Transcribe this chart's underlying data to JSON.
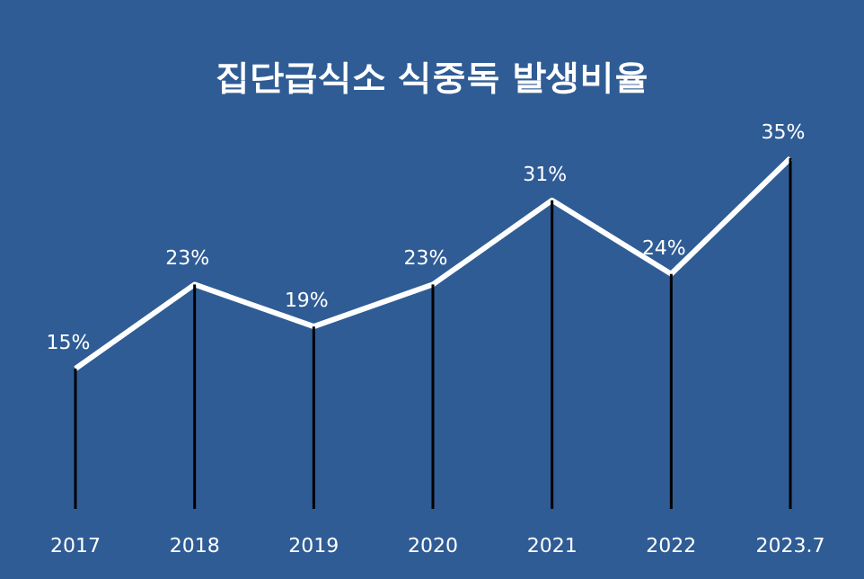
{
  "chart_data": {
    "type": "line",
    "title": "집단급식소 식중독 발생비율",
    "categories": [
      "2017",
      "2018",
      "2019",
      "2020",
      "2021",
      "2022",
      "2023.7"
    ],
    "series": [
      {
        "color": "#ffffff",
        "values": [
          15,
          23,
          19,
          23,
          31,
          24,
          35
        ],
        "value_labels": [
          "15%",
          "23%",
          "19%",
          "23%",
          "31%",
          "24%",
          "35%"
        ]
      }
    ],
    "grid": "x",
    "marker": "none"
  }
}
